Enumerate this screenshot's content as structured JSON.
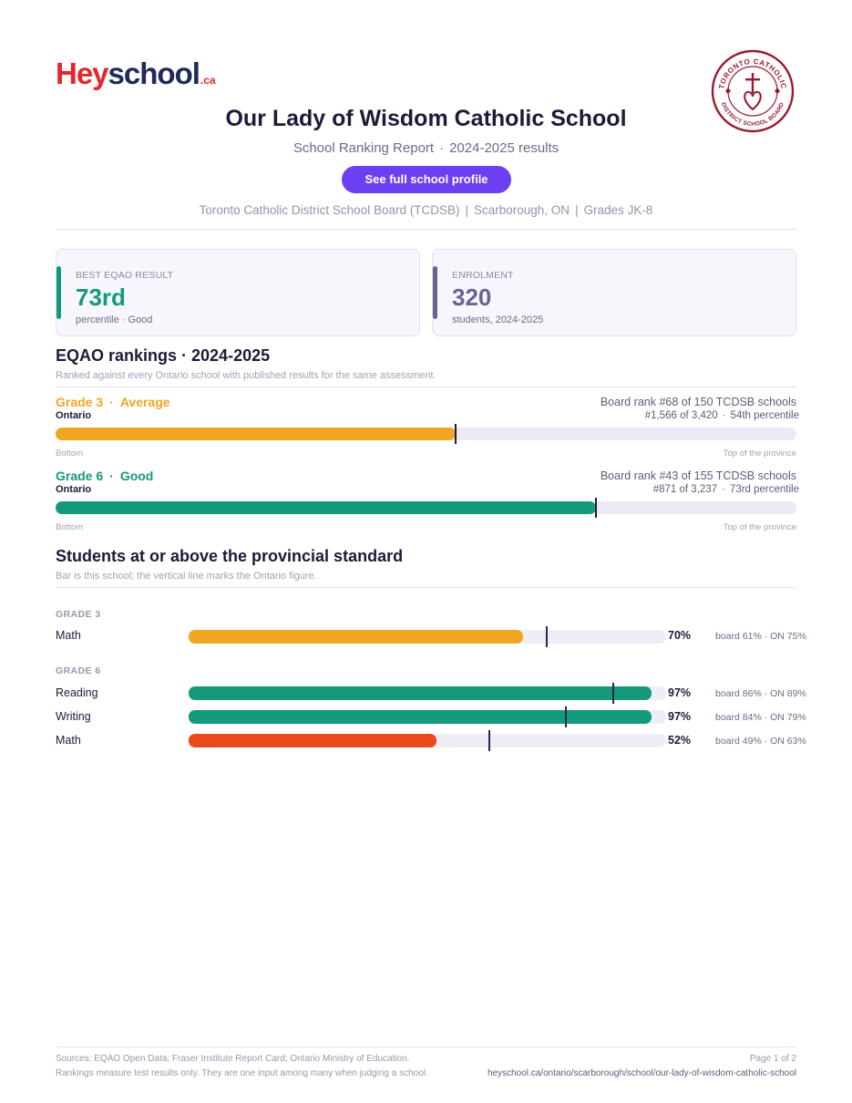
{
  "brand": {
    "hey": "Hey",
    "school": "school",
    "ca": ".ca",
    "color_red": "#e5262d",
    "color_navy": "#1f2a57"
  },
  "board_seal": {
    "text": "TORONTO CATHOLIC · DISTRICT SCHOOL BOARD",
    "color": "#9b1b30"
  },
  "header": {
    "title": "Our Lady of Wisdom Catholic School",
    "report": "School Ranking Report",
    "results": "2024-2025 results",
    "cta_label": "See full school profile",
    "board": "Toronto Catholic District School Board (TCDSB)",
    "location": "Scarborough, ON",
    "grades": "Grades JK-8"
  },
  "cards": [
    {
      "label": "BEST EQAO RESULT",
      "value": "73rd",
      "sub": "percentile · Good",
      "accent": "#14997a",
      "value_color": "#14997a"
    },
    {
      "label": "ENROLMENT",
      "value": "320",
      "sub": "students, 2024-2025",
      "accent": "#6b6390",
      "value_color": "#6b6390"
    }
  ],
  "rankings": {
    "heading": "EQAO rankings · 2024-2025",
    "note": "Ranked against every Ontario school with published results for the same assessment.",
    "axis_left": "Bottom",
    "axis_right": "Top of the province",
    "items": [
      {
        "grade": "Grade 3",
        "rating": "Average",
        "region": "Ontario",
        "board_rank": "Board rank #68 of 150 TCDSB schools",
        "province_rank": "#1,566 of 3,420",
        "percentile_label": "54th percentile",
        "percentile": 54,
        "color": "#f0a623"
      },
      {
        "grade": "Grade 6",
        "rating": "Good",
        "region": "Ontario",
        "board_rank": "Board rank #43 of 155 TCDSB schools",
        "province_rank": "#871 of 3,237",
        "percentile_label": "73rd percentile",
        "percentile": 73,
        "color": "#14997a"
      }
    ]
  },
  "standards": {
    "heading": "Students at or above the provincial standard",
    "note": "Bar is this school; the vertical line marks the Ontario figure.",
    "groups": [
      {
        "label": "GRADE 3",
        "rows": [
          {
            "subject": "Math",
            "pct": 70,
            "pct_label": "70%",
            "ontario": 75,
            "compare": "board 61% · ON 75%",
            "color": "#f0a623"
          }
        ]
      },
      {
        "label": "GRADE 6",
        "rows": [
          {
            "subject": "Reading",
            "pct": 97,
            "pct_label": "97%",
            "ontario": 89,
            "compare": "board 86% · ON 89%",
            "color": "#14997a"
          },
          {
            "subject": "Writing",
            "pct": 97,
            "pct_label": "97%",
            "ontario": 79,
            "compare": "board 84% · ON 79%",
            "color": "#14997a"
          },
          {
            "subject": "Math",
            "pct": 52,
            "pct_label": "52%",
            "ontario": 63,
            "compare": "board 49% · ON 63%",
            "color": "#ea4a1a"
          }
        ]
      }
    ]
  },
  "footer": {
    "sources": "Sources: EQAO Open Data; Fraser Institute Report Card; Ontario Ministry of Education.",
    "disclaimer": "Rankings measure test results only. They are one input among many when judging a school.",
    "page": "Page 1 of 2",
    "url": "heyschool.ca/ontario/scarborough/school/our-lady-of-wisdom-catholic-school"
  }
}
